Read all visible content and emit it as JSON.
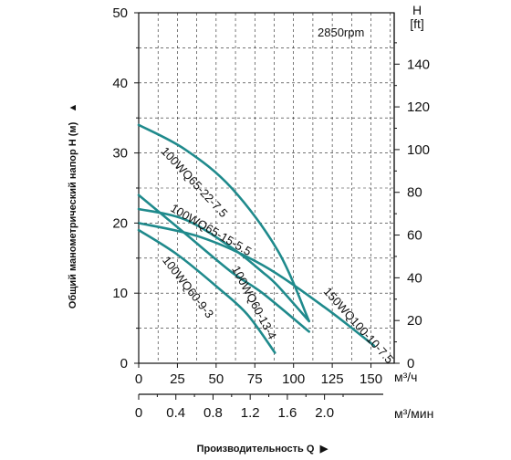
{
  "chart_data": {
    "type": "line",
    "annotation": "2850rpm",
    "y_axis": {
      "title": "Общий манометрический напор H (м)",
      "arrow": "▲",
      "range": [
        0,
        50
      ],
      "ticks": [
        0,
        10,
        20,
        30,
        40,
        50
      ]
    },
    "y2_axis": {
      "unit_top": "H",
      "unit_bottom": "[ft]",
      "ticks": [
        0,
        20,
        40,
        60,
        80,
        100,
        120,
        140
      ]
    },
    "x_axis": {
      "title": "Производительность Q",
      "arrow": "▶",
      "unit": "м³/ч",
      "range": [
        0,
        165
      ],
      "ticks": [
        0,
        25,
        50,
        75,
        100,
        125,
        150
      ]
    },
    "x2_axis": {
      "unit": "м³/мин",
      "ticks": [
        "0",
        "0.4",
        "0.8",
        "1.2",
        "1.6",
        "2.0"
      ],
      "tick_values": [
        0,
        0.4,
        0.8,
        1.2,
        1.6,
        2.0
      ]
    },
    "color": "#1f8a8c",
    "series": [
      {
        "name": "100WQ65-22-7.5",
        "x": [
          0,
          30,
          60,
          90,
          110
        ],
        "y": [
          34,
          30.5,
          25,
          16,
          6
        ]
      },
      {
        "name": "100WQ65-15-5.5",
        "x": [
          0,
          30,
          60,
          80,
          90,
          110
        ],
        "y": [
          22,
          20.5,
          16.5,
          13,
          11,
          6
        ]
      },
      {
        "name": "100WQ60-13-4",
        "x": [
          0,
          30,
          60,
          80,
          110
        ],
        "y": [
          24,
          18.5,
          13,
          10,
          4.5
        ]
      },
      {
        "name": "100WQ60-9-3",
        "x": [
          0,
          25,
          50,
          70,
          88
        ],
        "y": [
          19,
          15.5,
          11,
          7,
          1.5
        ]
      },
      {
        "name": "150WQ100-10-7.5",
        "x": [
          0,
          40,
          80,
          120,
          152
        ],
        "y": [
          20,
          18,
          14,
          8,
          2.5
        ]
      }
    ]
  }
}
